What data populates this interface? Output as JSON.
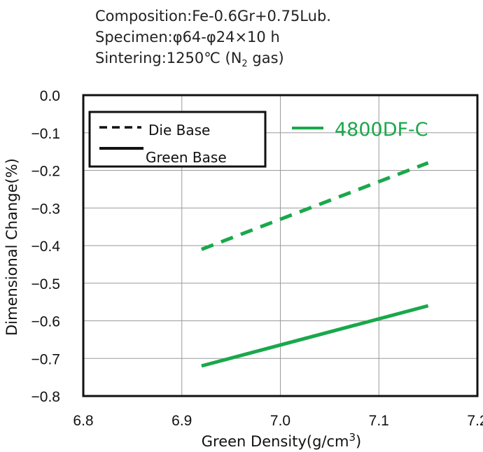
{
  "header": {
    "composition": "Composition:Fe-0.6Gr+0.75Lub.",
    "specimen": "Specimen:φ64-φ24×10 h",
    "sintering_prefix": "Sintering:1250℃ (N",
    "sintering_sub": "2",
    "sintering_suffix": " gas)"
  },
  "chart_data": {
    "type": "line",
    "xlabel": "Green Density(g/cm³)",
    "ylabel": "Dimensional Change(%)",
    "xlim": [
      6.8,
      7.2
    ],
    "ylim": [
      -0.8,
      0.0
    ],
    "x_ticks": [
      "6.8",
      "6.9",
      "7.0",
      "7.1",
      "7.2"
    ],
    "y_ticks": [
      "0.0",
      "−0.1",
      "−0.2",
      "−0.3",
      "−0.4",
      "−0.5",
      "−0.6",
      "−0.7",
      "−0.8"
    ],
    "grid": true,
    "legend": {
      "placement": "top-left",
      "entries": [
        {
          "label": "Die Base",
          "style": "dashed"
        },
        {
          "label": "Green Base",
          "style": "solid"
        }
      ]
    },
    "series_label": "4800DF-C",
    "series_color": "#19a84b",
    "series": [
      {
        "name": "Die Base",
        "style": "dashed",
        "x": [
          6.92,
          7.15
        ],
        "y": [
          -0.41,
          -0.18
        ]
      },
      {
        "name": "Green Base",
        "style": "solid",
        "x": [
          6.92,
          7.15
        ],
        "y": [
          -0.72,
          -0.56
        ]
      }
    ]
  }
}
